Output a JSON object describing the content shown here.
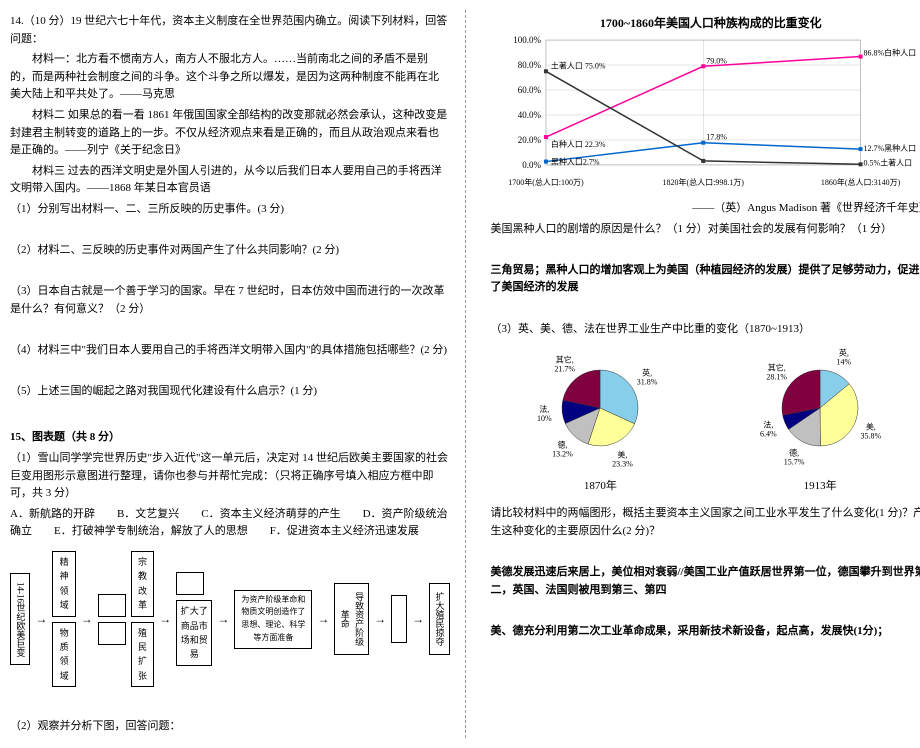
{
  "left": {
    "q14_intro": "14.（10 分）19 世纪六七十年代，资本主义制度在全世界范围内确立。阅读下列材料，回答问题：",
    "material1": "材料一：北方看不惯南方人，南方人不服北方人。……当前南北之间的矛盾不是别的，而是两种社会制度之间的斗争。这个斗争之所以爆发，是因为这两种制度不能再在北美大陆上和平共处了。——马克思",
    "material2": "材料二 如果总的看一看 1861 年俄国国家全部结构的改变那就必然会承认，这种改变是封建君主制转变的道路上的一步。不仅从经济观点来看是正确的，而且从政治观点来看也是正确的。——列宁《关于纪念日》",
    "material3": "材料三 过去的西洋文明史是外国人引进的，从今以后我们日本人要用自己的手将西洋文明带入国内。——1868 年某日本官员语",
    "sub1": "（1）分别写出材料一、二、三所反映的历史事件。(3 分)",
    "sub2": "（2）材料二、三反映的历史事件对两国产生了什么共同影响？(2 分)",
    "sub3": "（3）日本自古就是一个善于学习的国家。早在 7 世纪时，日本仿效中国而进行的一次改革是什么？有何意义？（2 分）",
    "sub4": "（4）材料三中\"我们日本人要用自己的手将西洋文明带入国内\"的具体措施包括哪些？(2 分)",
    "sub5": "（5）上述三国的崛起之路对我国现代化建设有什么启示？(1 分)",
    "q15_title": "15、图表题（共 8 分）",
    "q15_1": "（1）雪山同学学完世界历史\"步入近代\"这一单元后，决定对 14 世纪后欧美主要国家的社会巨变用图形示意图进行整理，请你也参与并帮忙完成：（只将正确序号填入相应方框中即可，共 3 分）",
    "options": "A．新航路的开辟　　B．文艺复兴　　C．资本主义经济萌芽的产生　　D．资产阶级统治确立　　E．打破神学专制统治，解放了人的思想　　F．促进资本主义经济迅速发展",
    "flow": {
      "start": "14-16世纪欧美巨变",
      "spirit": "精神领域",
      "material": "物质领域",
      "religion": "宗教改革",
      "colony": "殖民扩张",
      "trade": "扩大了商品市场和贸易",
      "prepare": "为资产阶级革命和物质文明创造作了思想、理论、科学等方面准备",
      "revolution": "导致资产阶级革命",
      "expand": "扩大殖民掠夺"
    },
    "q15_2": "（2）观察并分析下图，回答问题："
  },
  "right": {
    "chart": {
      "title": "1700~1860年美国人口种族构成的比重变化",
      "xlabels": [
        "1700年(总人口:100万)",
        "1820年(总人口:998.1万)",
        "1860年(总人口:3140万)"
      ],
      "ylim": [
        0,
        100
      ],
      "ystep": 20,
      "series": {
        "white": {
          "label": "白种人口",
          "values": [
            22.3,
            79.0,
            86.8
          ],
          "color": "#ff0099"
        },
        "black": {
          "label": "黑种人口",
          "values": [
            2.7,
            17.8,
            12.7
          ],
          "color": "#0066cc"
        },
        "native": {
          "label": "土著人口",
          "values": [
            75.0,
            3.2,
            0.5
          ],
          "color": "#333333"
        }
      },
      "bg": "#ffffff",
      "grid_color": "#cccccc"
    },
    "source": "——（英）Angus Madison 著《世界经济千年史》",
    "qA": "美国黑种人口的剧增的原因是什么？（1 分）对美国社会的发展有何影响？（1 分）",
    "ansA": "三角贸易；黑种人口的增加客观上为美国（种植园经济的发展）提供了足够劳动力，促进了美国经济的发展",
    "q3": "（3）英、美、德、法在世界工业生产中比重的变化（1870~1913）",
    "pies": {
      "1870": {
        "label": "1870年",
        "slices": [
          {
            "name": "英",
            "pct": 31.8,
            "color": "#87ceeb"
          },
          {
            "name": "美",
            "pct": 23.3,
            "color": "#ffff99"
          },
          {
            "name": "德",
            "pct": 13.2,
            "color": "#c0c0c0"
          },
          {
            "name": "法",
            "pct": 10.0,
            "color": "#000080"
          },
          {
            "name": "其它",
            "pct": 21.7,
            "color": "#800040"
          }
        ]
      },
      "1913": {
        "label": "1913年",
        "slices": [
          {
            "name": "英",
            "pct": 14.0,
            "color": "#87ceeb"
          },
          {
            "name": "美",
            "pct": 35.8,
            "color": "#ffff99"
          },
          {
            "name": "德",
            "pct": 15.7,
            "color": "#c0c0c0"
          },
          {
            "name": "法",
            "pct": 6.4,
            "color": "#000080"
          },
          {
            "name": "其它",
            "pct": 28.1,
            "color": "#800040"
          }
        ]
      }
    },
    "qB": "请比较材料中的两幅图形，概括主要资本主义国家之间工业水平发生了什么变化(1 分)？产生这种变化的主要原因什么(2 分)？",
    "ansB1": "美德发展迅速后来居上，美位相对衰弱//美国工业产值跃居世界第一位，德国攀升到世界第二，英国、法国则被甩到第三、第四",
    "ansB2": "美、德充分利用第二次工业革命成果，采用新技术新设备，起点高，发展快(1分)；"
  }
}
